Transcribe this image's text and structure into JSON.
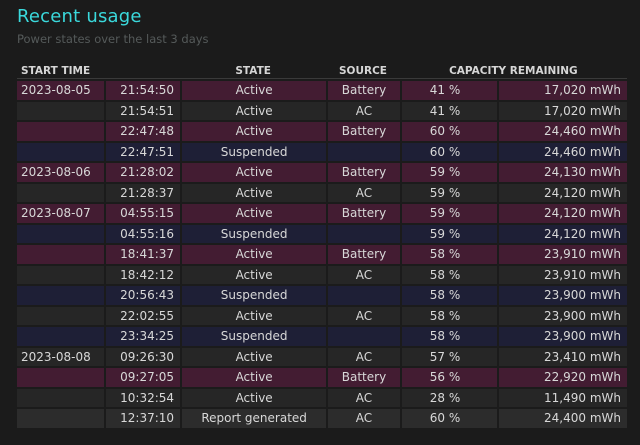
{
  "header": {
    "title": "Recent usage",
    "subtitle": "Power states over the last 3 days"
  },
  "columns": {
    "start_time": "START TIME",
    "state": "STATE",
    "source": "SOURCE",
    "capacity": "CAPACITY REMAINING"
  },
  "colors": {
    "title": "#3ad9dc",
    "battery_row": "#431c32",
    "ac_row": "#262626",
    "suspended_row": "#1e1f36"
  },
  "rows": [
    {
      "date": "2023-08-05",
      "time": "21:54:50",
      "state": "Active",
      "source": "Battery",
      "pct": "41 %",
      "cap": "17,020 mWh",
      "kind": "battery"
    },
    {
      "date": "",
      "time": "21:54:51",
      "state": "Active",
      "source": "AC",
      "pct": "41 %",
      "cap": "17,020 mWh",
      "kind": "ac"
    },
    {
      "date": "",
      "time": "22:47:48",
      "state": "Active",
      "source": "Battery",
      "pct": "60 %",
      "cap": "24,460 mWh",
      "kind": "battery"
    },
    {
      "date": "",
      "time": "22:47:51",
      "state": "Suspended",
      "source": "",
      "pct": "60 %",
      "cap": "24,460 mWh",
      "kind": "suspended"
    },
    {
      "date": "2023-08-06",
      "time": "21:28:02",
      "state": "Active",
      "source": "Battery",
      "pct": "59 %",
      "cap": "24,130 mWh",
      "kind": "battery"
    },
    {
      "date": "",
      "time": "21:28:37",
      "state": "Active",
      "source": "AC",
      "pct": "59 %",
      "cap": "24,120 mWh",
      "kind": "ac"
    },
    {
      "date": "2023-08-07",
      "time": "04:55:15",
      "state": "Active",
      "source": "Battery",
      "pct": "59 %",
      "cap": "24,120 mWh",
      "kind": "battery"
    },
    {
      "date": "",
      "time": "04:55:16",
      "state": "Suspended",
      "source": "",
      "pct": "59 %",
      "cap": "24,120 mWh",
      "kind": "suspended"
    },
    {
      "date": "",
      "time": "18:41:37",
      "state": "Active",
      "source": "Battery",
      "pct": "58 %",
      "cap": "23,910 mWh",
      "kind": "battery"
    },
    {
      "date": "",
      "time": "18:42:12",
      "state": "Active",
      "source": "AC",
      "pct": "58 %",
      "cap": "23,910 mWh",
      "kind": "ac"
    },
    {
      "date": "",
      "time": "20:56:43",
      "state": "Suspended",
      "source": "",
      "pct": "58 %",
      "cap": "23,900 mWh",
      "kind": "suspended"
    },
    {
      "date": "",
      "time": "22:02:55",
      "state": "Active",
      "source": "AC",
      "pct": "58 %",
      "cap": "23,900 mWh",
      "kind": "ac"
    },
    {
      "date": "",
      "time": "23:34:25",
      "state": "Suspended",
      "source": "",
      "pct": "58 %",
      "cap": "23,900 mWh",
      "kind": "suspended"
    },
    {
      "date": "2023-08-08",
      "time": "09:26:30",
      "state": "Active",
      "source": "AC",
      "pct": "57 %",
      "cap": "23,410 mWh",
      "kind": "ac"
    },
    {
      "date": "",
      "time": "09:27:05",
      "state": "Active",
      "source": "Battery",
      "pct": "56 %",
      "cap": "22,920 mWh",
      "kind": "battery"
    },
    {
      "date": "",
      "time": "10:32:54",
      "state": "Active",
      "source": "AC",
      "pct": "28 %",
      "cap": "11,490 mWh",
      "kind": "ac"
    },
    {
      "date": "",
      "time": "12:37:10",
      "state": "Report generated",
      "source": "AC",
      "pct": "60 %",
      "cap": "24,400 mWh",
      "kind": "report"
    }
  ]
}
